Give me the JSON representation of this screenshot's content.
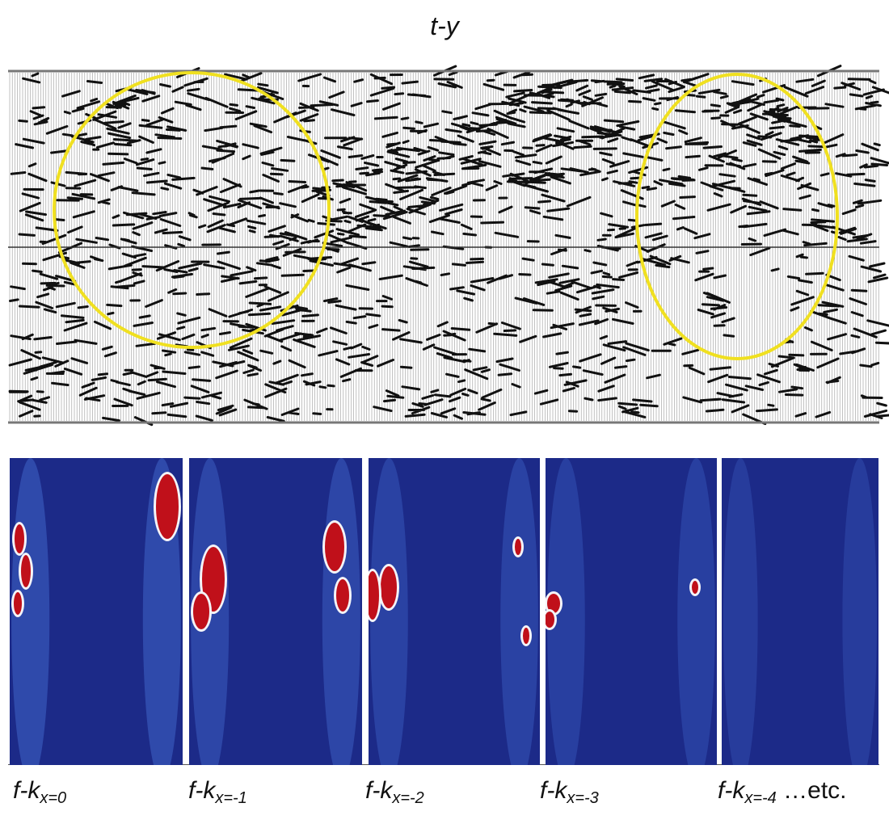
{
  "title": "t-y",
  "seismic": {
    "annotation_color": "#f0e020",
    "highlights": [
      "yellow-ellipse-left",
      "yellow-ellipse-right"
    ]
  },
  "fk_panels": [
    {
      "prefix": "f-k",
      "subscript": "x=0",
      "suffix": ""
    },
    {
      "prefix": "f-k",
      "subscript": "x=-1",
      "suffix": ""
    },
    {
      "prefix": "f-k",
      "subscript": "x=-2",
      "suffix": ""
    },
    {
      "prefix": "f-k",
      "subscript": "x=-3",
      "suffix": ""
    },
    {
      "prefix": "f-k",
      "subscript": "x=-4",
      "suffix": " …etc."
    }
  ],
  "colors": {
    "fk_background": "#1c2a88",
    "fk_halo": "#3f64c8",
    "fk_hot": "#c0101a",
    "fk_white": "#f4f4f8"
  }
}
